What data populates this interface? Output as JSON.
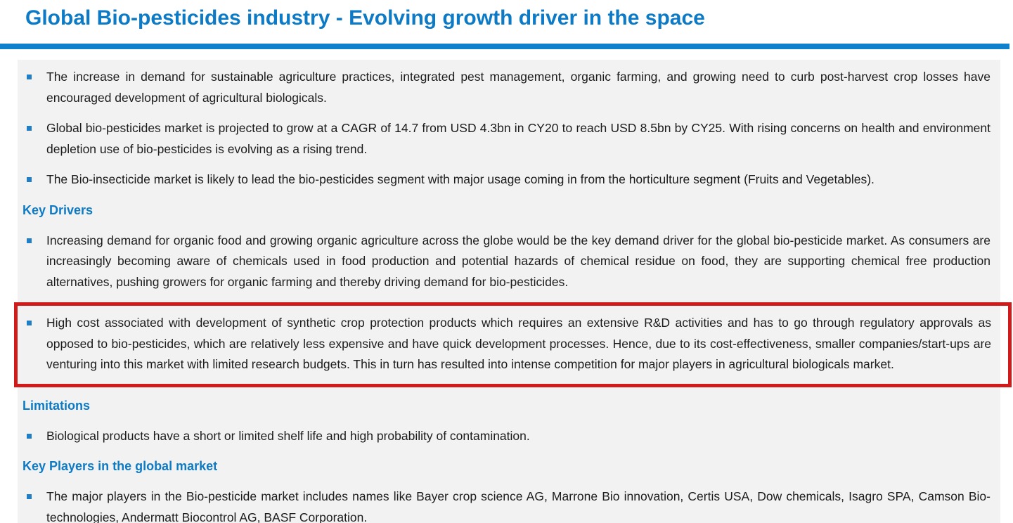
{
  "header": {
    "title": "Global Bio-pesticides industry - Evolving growth driver in the space"
  },
  "colors": {
    "accent_blue": "#0d7ac6",
    "divider_blue": "#0f81cc",
    "bullet_blue": "#1f7ec5",
    "highlight_red": "#d11a1a",
    "panel_background": "#f2f2f2",
    "body_text": "#1c1c1c"
  },
  "content": {
    "blocks": [
      {
        "type": "bullet",
        "text": "The increase in demand for sustainable agriculture practices, integrated pest management, organic farming, and growing need to curb post-harvest crop losses have encouraged development of agricultural biologicals."
      },
      {
        "type": "bullet",
        "text": "Global bio-pesticides market is projected to grow at a CAGR of 14.7 from USD 4.3bn in CY20 to reach USD 8.5bn by CY25. With rising concerns on health and environment depletion use of bio-pesticides is evolving as a rising trend."
      },
      {
        "type": "bullet",
        "text": "The Bio-insecticide market is likely to lead the bio-pesticides segment with major usage coming in from the horticulture segment (Fruits and Vegetables)."
      },
      {
        "type": "heading",
        "text": "Key Drivers"
      },
      {
        "type": "bullet",
        "text": "Increasing demand for organic food and growing organic agriculture across the globe would be the key demand driver for the global bio-pesticide market. As consumers are increasingly becoming aware of chemicals used in food production and potential hazards of chemical residue on food, they are supporting chemical free production alternatives, pushing growers for organic farming and thereby driving demand for bio-pesticides."
      },
      {
        "type": "bullet",
        "highlighted": true,
        "text": "High cost associated with development of synthetic crop protection products which requires an extensive R&D activities and has to go through regulatory approvals as opposed to bio-pesticides, which are relatively less expensive and have quick development processes. Hence, due to its cost-effectiveness, smaller companies/start-ups are venturing into this market with limited research budgets. This in turn has resulted into intense competition for major players in agricultural biologicals market."
      },
      {
        "type": "heading",
        "text": "Limitations"
      },
      {
        "type": "bullet",
        "text": "Biological products have a short or limited shelf life and high probability of contamination."
      },
      {
        "type": "heading",
        "text": "Key Players in the global market"
      },
      {
        "type": "bullet",
        "text": "The major players in the Bio-pesticide market includes names like Bayer crop science AG, Marrone Bio innovation, Certis USA, Dow chemicals, Isagro SPA, Camson Bio-technologies, Andermatt Biocontrol AG, BASF Corporation."
      }
    ]
  }
}
